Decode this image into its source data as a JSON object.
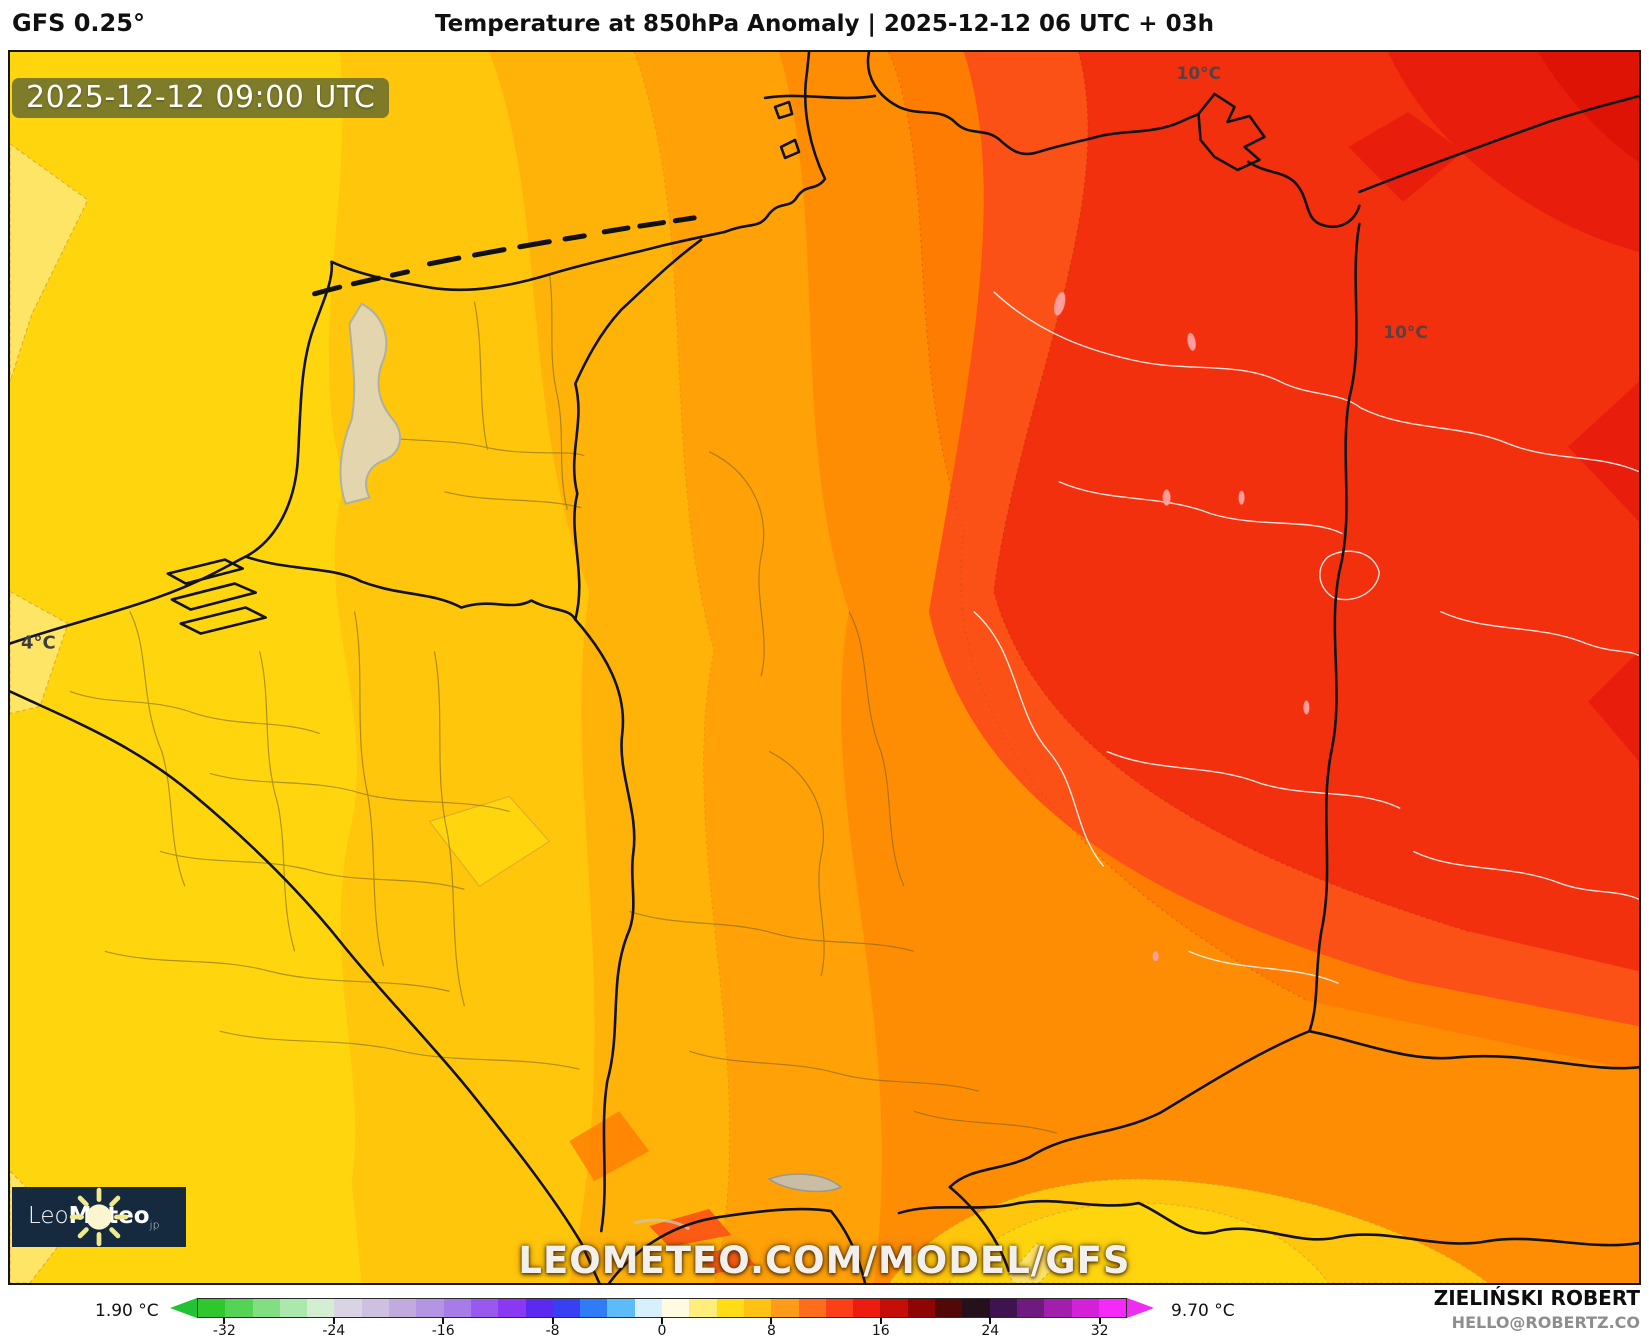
{
  "header": {
    "model_label": "GFS 0.25°",
    "title": "Temperature at 850hPa Anomaly | 2025-12-12 06 UTC + 03h"
  },
  "map": {
    "timestamp_badge": "2025-12-12 09:00 UTC",
    "watermark": "LEOMETEO.COM/MODEL/GFS",
    "contour_labels": [
      {
        "text": "4°C"
      },
      {
        "text": "10°C"
      },
      {
        "text": "10°C"
      }
    ],
    "logo": {
      "name_light": "Leo",
      "name_bold": "Meteo",
      "suffix": "jp"
    }
  },
  "footer": {
    "min_value_label": "1.90 °C",
    "max_value_label": "9.70 °C",
    "credit_name": "ZIELIŃSKI ROBERT",
    "credit_email": "HELLO@ROBERTZ.CO"
  },
  "chart_data": {
    "type": "heatmap",
    "title": "Temperature at 850hPa Anomaly",
    "model": "GFS 0.25°",
    "run": "2025-12-12 06 UTC",
    "forecast_offset": "+ 03h",
    "valid_time": "2025-12-12 09:00 UTC",
    "units": "°C",
    "data_min": 1.9,
    "data_max": 9.7,
    "region_palette": {
      "pale_yellow": "#ffe566",
      "west_yellow": "#ffd60e",
      "yellow_orange": "#ffc60b",
      "light_orange": "#ffb309",
      "orange": "#ffa107",
      "deep_orange": "#ff8d04",
      "dark_orange": "#ff7c02",
      "orange_red": "#fc5116",
      "red": "#f2300d",
      "deep_red": "#e81d0b",
      "darkest_red": "#df1206"
    },
    "colorbar": {
      "range": [
        -34,
        34
      ],
      "step": 2,
      "ticks": [
        -32,
        -24,
        -16,
        -8,
        0,
        8,
        16,
        24,
        32
      ],
      "left_arrow_color": "#22c235",
      "right_arrow_color": "#ef2df2",
      "segments": [
        "#2ec82e",
        "#54d354",
        "#81df81",
        "#abe8ab",
        "#d3eed3",
        "#dad3e4",
        "#cec0e1",
        "#c1abde",
        "#b495e3",
        "#a77ce9",
        "#985aee",
        "#8a38f2",
        "#5a2af0",
        "#3940f3",
        "#2f7cf6",
        "#5ebbf9",
        "#d7f0fd",
        "#fffbe2",
        "#ffee7a",
        "#ffdc16",
        "#ffc113",
        "#ff9b19",
        "#ff6c1c",
        "#fc3f16",
        "#ee1c0e",
        "#c60d07",
        "#8f0504",
        "#520807",
        "#26101b",
        "#3f1250",
        "#6f1a7e",
        "#a21fae",
        "#d321d9",
        "#f62af8"
      ]
    }
  }
}
